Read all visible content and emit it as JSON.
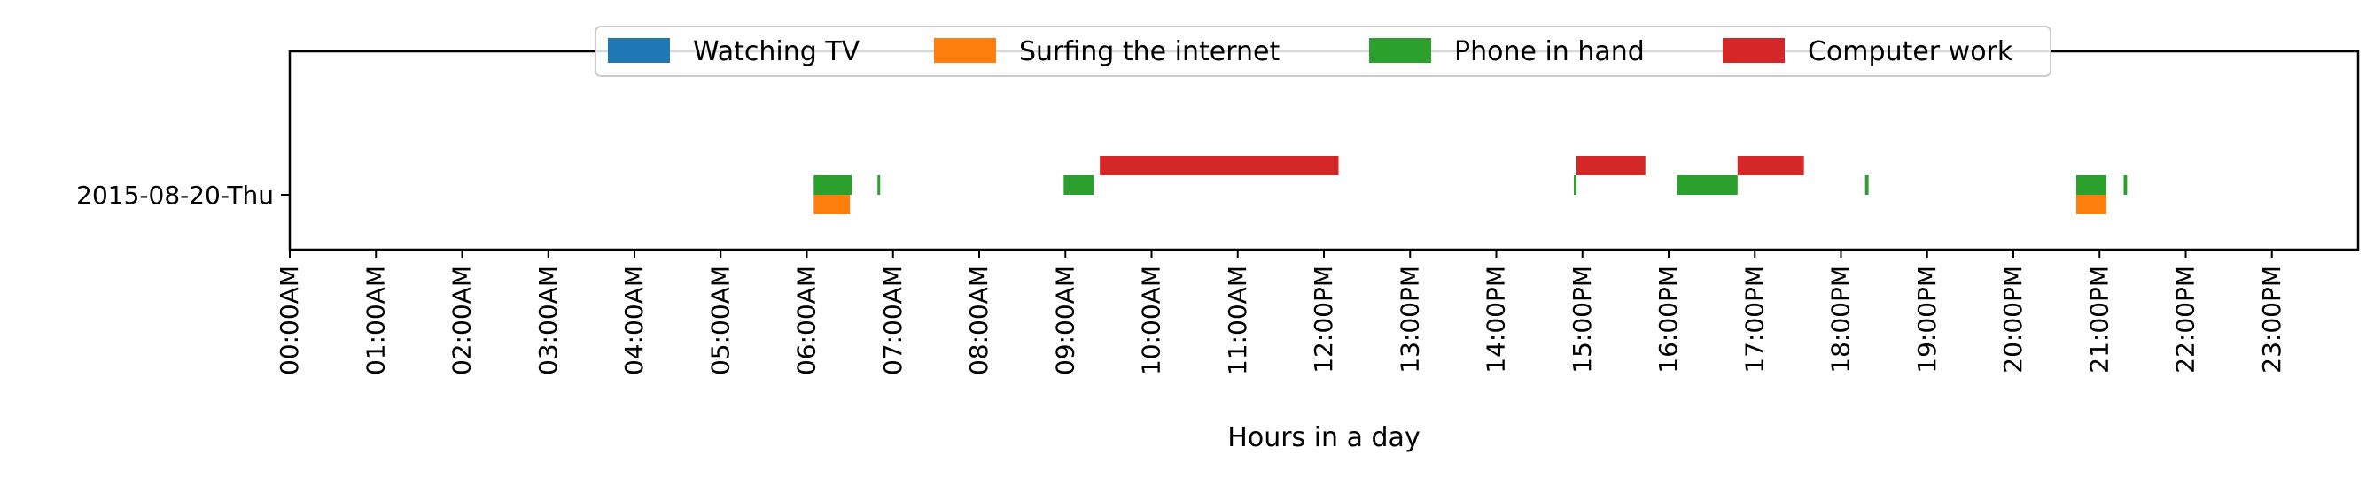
{
  "chart_data": {
    "type": "timeline",
    "xlabel": "Hours in a day",
    "xlim": [
      0,
      24
    ],
    "x_ticks": [
      0,
      1,
      2,
      3,
      4,
      5,
      6,
      7,
      8,
      9,
      10,
      11,
      12,
      13,
      14,
      15,
      16,
      17,
      18,
      19,
      20,
      21,
      22,
      23
    ],
    "x_tick_labels": [
      "00:00AM",
      "01:00AM",
      "02:00AM",
      "03:00AM",
      "04:00AM",
      "05:00AM",
      "06:00AM",
      "07:00AM",
      "08:00AM",
      "09:00AM",
      "10:00AM",
      "11:00AM",
      "12:00PM",
      "13:00PM",
      "14:00PM",
      "15:00PM",
      "16:00PM",
      "17:00PM",
      "18:00PM",
      "19:00PM",
      "20:00PM",
      "21:00PM",
      "22:00PM",
      "23:00PM"
    ],
    "categories": [
      "2015-08-20-Thu"
    ],
    "legend_position": "top-center",
    "grid": false,
    "series": [
      {
        "name": "Watching TV",
        "color": "#1f77b4",
        "intervals": []
      },
      {
        "name": "Surfing the internet",
        "color": "#ff7f0e",
        "intervals": [
          [
            6.08,
            6.5
          ],
          [
            20.73,
            21.08
          ]
        ]
      },
      {
        "name": "Phone in hand",
        "color": "#2ca02c",
        "intervals": [
          [
            6.08,
            6.52
          ],
          [
            6.82,
            6.85
          ],
          [
            8.98,
            9.33
          ],
          [
            14.9,
            14.93
          ],
          [
            16.1,
            16.8
          ],
          [
            18.28,
            18.32
          ],
          [
            20.73,
            21.08
          ],
          [
            21.28,
            21.32
          ]
        ]
      },
      {
        "name": "Computer work",
        "color": "#d62728",
        "intervals": [
          [
            9.4,
            12.17
          ],
          [
            14.93,
            15.73
          ],
          [
            16.8,
            17.57
          ]
        ]
      }
    ]
  }
}
